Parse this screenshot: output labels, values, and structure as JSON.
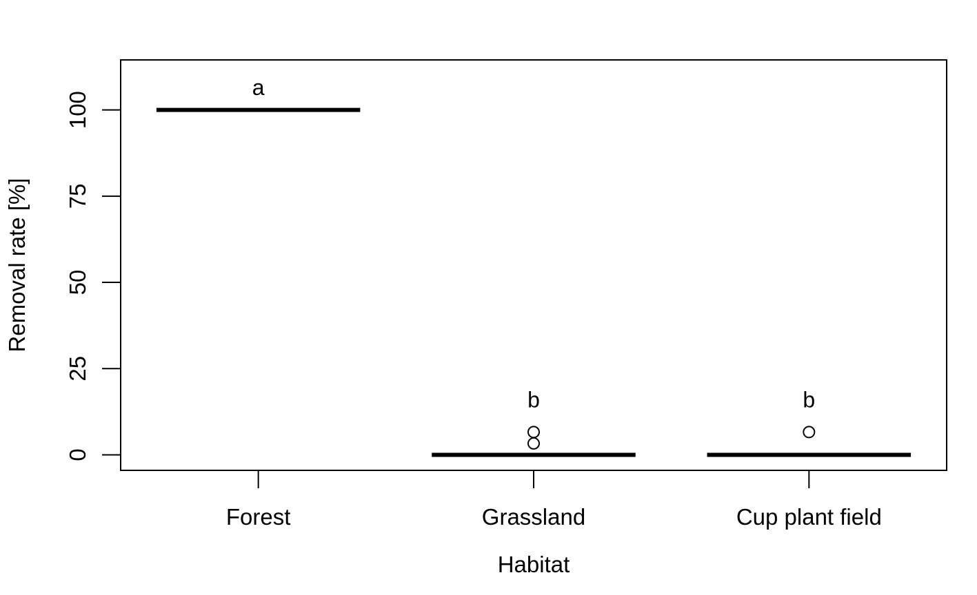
{
  "chart_data": {
    "type": "boxplot",
    "title": "",
    "xlabel": "Habitat",
    "ylabel": "Removal rate [%]",
    "ylim": [
      -4.5,
      114.5
    ],
    "y_ticks": [
      0,
      25,
      50,
      75,
      100
    ],
    "y_tick_labels": [
      "0",
      "25",
      "50",
      "75",
      "100"
    ],
    "grid": false,
    "categories": [
      "Forest",
      "Grassland",
      "Cup plant field"
    ],
    "series": [
      {
        "values": [
          {
            "median": 100,
            "q1": 100,
            "q3": 100,
            "whisker_low": 100,
            "whisker_high": 100,
            "outliers": []
          },
          {
            "median": 0,
            "q1": 0,
            "q3": 0,
            "whisker_low": 0,
            "whisker_high": 0,
            "outliers": [
              3.3,
              6.6
            ]
          },
          {
            "median": 0,
            "q1": 0,
            "q3": 0,
            "whisker_low": 0,
            "whisker_high": 0,
            "outliers": [
              6.6
            ]
          }
        ]
      }
    ],
    "annotations": [
      {
        "category": "Forest",
        "text": "a",
        "y": 106.5
      },
      {
        "category": "Grassland",
        "text": "b",
        "y": 16
      },
      {
        "category": "Cup plant field",
        "text": "b",
        "y": 16
      }
    ]
  }
}
